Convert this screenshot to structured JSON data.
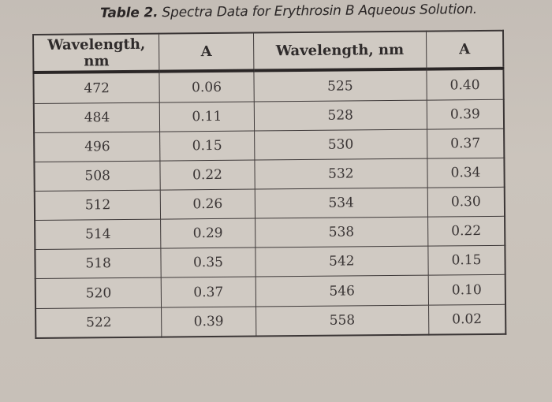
{
  "caption": {
    "label": "Table 2.",
    "title": "Spectra Data for Erythrosin B Aqueous Solution."
  },
  "table": {
    "headers": [
      "Wavelength, nm",
      "A",
      "Wavelength, nm",
      "A"
    ],
    "rows": [
      [
        "472",
        "0.06",
        "525",
        "0.40"
      ],
      [
        "484",
        "0.11",
        "528",
        "0.39"
      ],
      [
        "496",
        "0.15",
        "530",
        "0.37"
      ],
      [
        "508",
        "0.22",
        "532",
        "0.34"
      ],
      [
        "512",
        "0.26",
        "534",
        "0.30"
      ],
      [
        "514",
        "0.29",
        "538",
        "0.22"
      ],
      [
        "518",
        "0.35",
        "542",
        "0.15"
      ],
      [
        "520",
        "0.37",
        "546",
        "0.10"
      ],
      [
        "522",
        "0.39",
        "558",
        "0.02"
      ]
    ]
  }
}
